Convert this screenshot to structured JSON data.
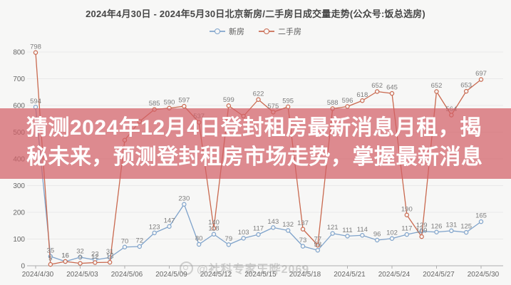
{
  "title": "2024年4月30日 - 2024年5月30日北京新房/二手房日成交量走势(公众号:饭总选房)",
  "legend": {
    "items": [
      {
        "label": "新房"
      },
      {
        "label": "二手房"
      }
    ]
  },
  "overlay": {
    "line1": "猜测2024年12月4日登封租房最新消息月租，揭",
    "line2": "秘未来，预测登封租房市场走势，掌握最新消息"
  },
  "watermark": {
    "text": "@社科专家王晔2069"
  },
  "colors": {
    "bg": "#f7f7f6",
    "title_color": "#474747",
    "series_new": "#7fa3cb",
    "series_resale": "#c9694f",
    "banner": "rgba(210,95,102,0.72)",
    "grid": "#e9e9e9",
    "axis": "#aeaeae",
    "label_gray": "#7d7d7d",
    "tick_gray": "#666666",
    "watermark_gray": "rgba(145,145,145,0.40)"
  },
  "chart_data": {
    "type": "line",
    "title": "2024年4月30日 - 2024年5月30日北京新房/二手房日成交量走势(公众号:饭总选房)",
    "x": [
      "2024/4/30",
      "2024/5/01",
      "2024/5/02",
      "2024/5/03",
      "2024/5/04",
      "2024/5/05",
      "2024/5/06",
      "2024/5/07",
      "2024/5/08",
      "2024/5/09",
      "2024/5/10",
      "2024/5/11",
      "2024/5/12",
      "2024/5/13",
      "2024/5/14",
      "2024/5/15",
      "2024/5/16",
      "2024/5/17",
      "2024/5/18",
      "2024/5/19",
      "2024/5/20",
      "2024/5/21",
      "2024/5/22",
      "2024/5/23",
      "2024/5/24",
      "2024/5/25",
      "2024/5/26",
      "2024/5/27",
      "2024/5/28",
      "2024/5/29",
      "2024/5/30"
    ],
    "x_tick_indices": [
      0,
      3,
      6,
      9,
      12,
      15,
      18,
      21,
      24,
      27,
      30
    ],
    "x_tick_labels": [
      "2024/4/30",
      "2024/5/03",
      "2024/5/06",
      "2024/5/09",
      "2024/5/12",
      "2024/5/15",
      "2024/5/18",
      "2024/5/21",
      "2024/5/24",
      "2024/5/27",
      "2024/5/30"
    ],
    "ylim": [
      0,
      800
    ],
    "yticks": [
      0,
      100,
      200,
      300,
      400,
      500,
      600,
      700,
      800
    ],
    "grid": true,
    "legend_position": "top",
    "series": [
      {
        "name": "新房",
        "values": [
          594,
          35,
          16,
          32,
          22,
          31,
          70,
          72,
          123,
          147,
          230,
          80,
          118,
          79,
          103,
          117,
          143,
          132,
          73,
          58,
          121,
          111,
          114,
          96,
          102,
          117,
          129,
          126,
          131,
          125,
          165
        ],
        "estimated_hidden_indices": []
      },
      {
        "name": "二手房",
        "values": [
          798,
          5,
          16,
          9,
          12,
          13,
          470,
          540,
          585,
          590,
          597,
          537,
          140,
          599,
          560,
          622,
          575,
          595,
          137,
          77,
          588,
          596,
          618,
          652,
          645,
          190,
          109,
          652,
          564,
          653,
          697
        ],
        "estimated_hidden_indices": [
          6,
          7,
          14
        ],
        "note": "values at 2024/5/06, 2024/5/07, 2024/5/14 are hidden behind the text overlay and estimated"
      }
    ]
  }
}
